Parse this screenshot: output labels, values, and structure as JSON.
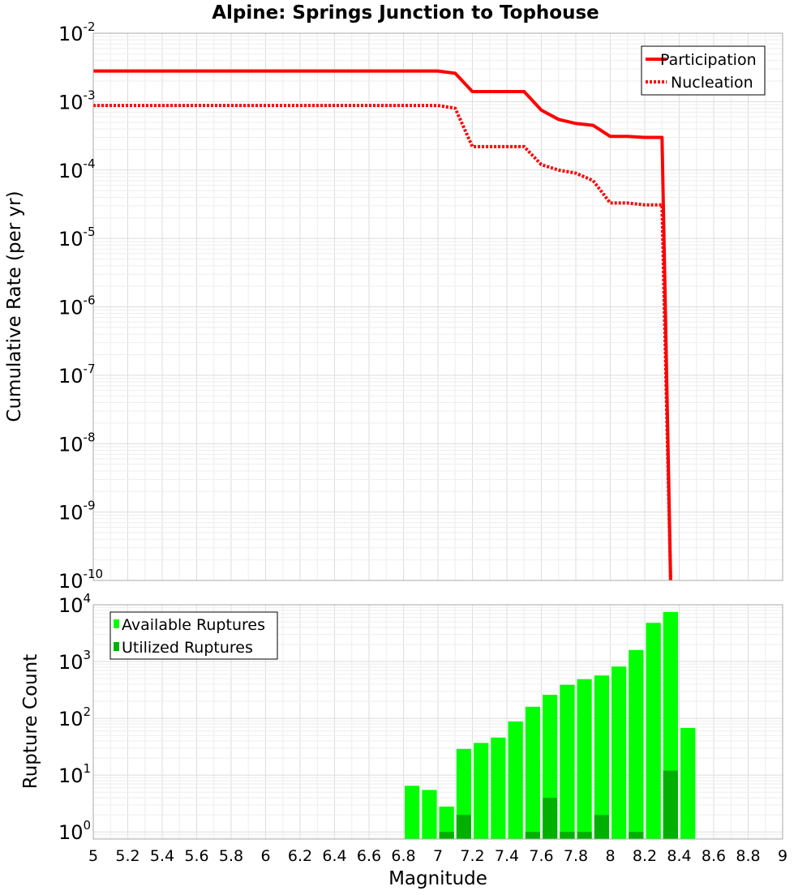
{
  "chart_data": [
    {
      "type": "line",
      "title": "Alpine: Springs Junction to Tophouse",
      "xlabel": "Magnitude",
      "ylabel": "Cumulative Rate (per yr)",
      "xlim": [
        5,
        9
      ],
      "ylim": [
        1e-10,
        0.01
      ],
      "yscale": "log",
      "ytick_exponents": [
        -2,
        -3,
        -4,
        -5,
        -6,
        -7,
        -8,
        -9,
        -10
      ],
      "grid": true,
      "legend": "top-right",
      "series": [
        {
          "name": "Participation",
          "style": "solid",
          "color": "#ff0000",
          "x": [
            5.0,
            7.0,
            7.1,
            7.2,
            7.5,
            7.6,
            7.7,
            7.8,
            7.9,
            8.0,
            8.1,
            8.2,
            8.3,
            8.35
          ],
          "y": [
            0.0028,
            0.0028,
            0.0026,
            0.0014,
            0.0014,
            0.00075,
            0.00055,
            0.00048,
            0.00045,
            0.00031,
            0.00031,
            0.0003,
            0.0003,
            1e-10
          ]
        },
        {
          "name": "Nucleation",
          "style": "dotted",
          "color": "#ff0000",
          "x": [
            5.0,
            7.0,
            7.1,
            7.2,
            7.5,
            7.6,
            7.7,
            7.8,
            7.9,
            8.0,
            8.1,
            8.2,
            8.3,
            8.35
          ],
          "y": [
            0.00088,
            0.00088,
            0.0008,
            0.00022,
            0.00022,
            0.00012,
            0.0001,
            9e-05,
            7e-05,
            3.3e-05,
            3.3e-05,
            3.1e-05,
            3.1e-05,
            1e-10
          ]
        }
      ]
    },
    {
      "type": "bar",
      "xlabel": "Magnitude",
      "ylabel": "Rupture Count",
      "xlim": [
        5,
        9
      ],
      "ylim": [
        0.75,
        10000
      ],
      "yscale": "log",
      "ytick_exponents": [
        0,
        1,
        2,
        3,
        4
      ],
      "xticks": [
        "5",
        "5.2",
        "5.4",
        "5.6",
        "5.8",
        "6",
        "6.2",
        "6.4",
        "6.6",
        "6.8",
        "7",
        "7.2",
        "7.4",
        "7.6",
        "7.8",
        "8",
        "8.2",
        "8.4",
        "8.6",
        "8.8",
        "9"
      ],
      "bin_width": 0.1,
      "grid": true,
      "legend": "top-left",
      "categories": [
        6.85,
        6.95,
        7.05,
        7.15,
        7.25,
        7.35,
        7.45,
        7.55,
        7.65,
        7.75,
        7.85,
        7.95,
        8.05,
        8.15,
        8.25,
        8.35,
        8.45
      ],
      "series": [
        {
          "name": "Available Ruptures",
          "color": "#00ff00",
          "values": [
            6.5,
            5.5,
            2.8,
            29,
            37,
            46,
            88,
            160,
            260,
            390,
            490,
            570,
            820,
            1600,
            4800,
            7500,
            68
          ]
        },
        {
          "name": "Utilized Ruptures",
          "color": "#00b000",
          "values": [
            0,
            0,
            1,
            2,
            0,
            0,
            0,
            1,
            4,
            1,
            1,
            2,
            0,
            1,
            0,
            12,
            0
          ]
        }
      ]
    }
  ]
}
